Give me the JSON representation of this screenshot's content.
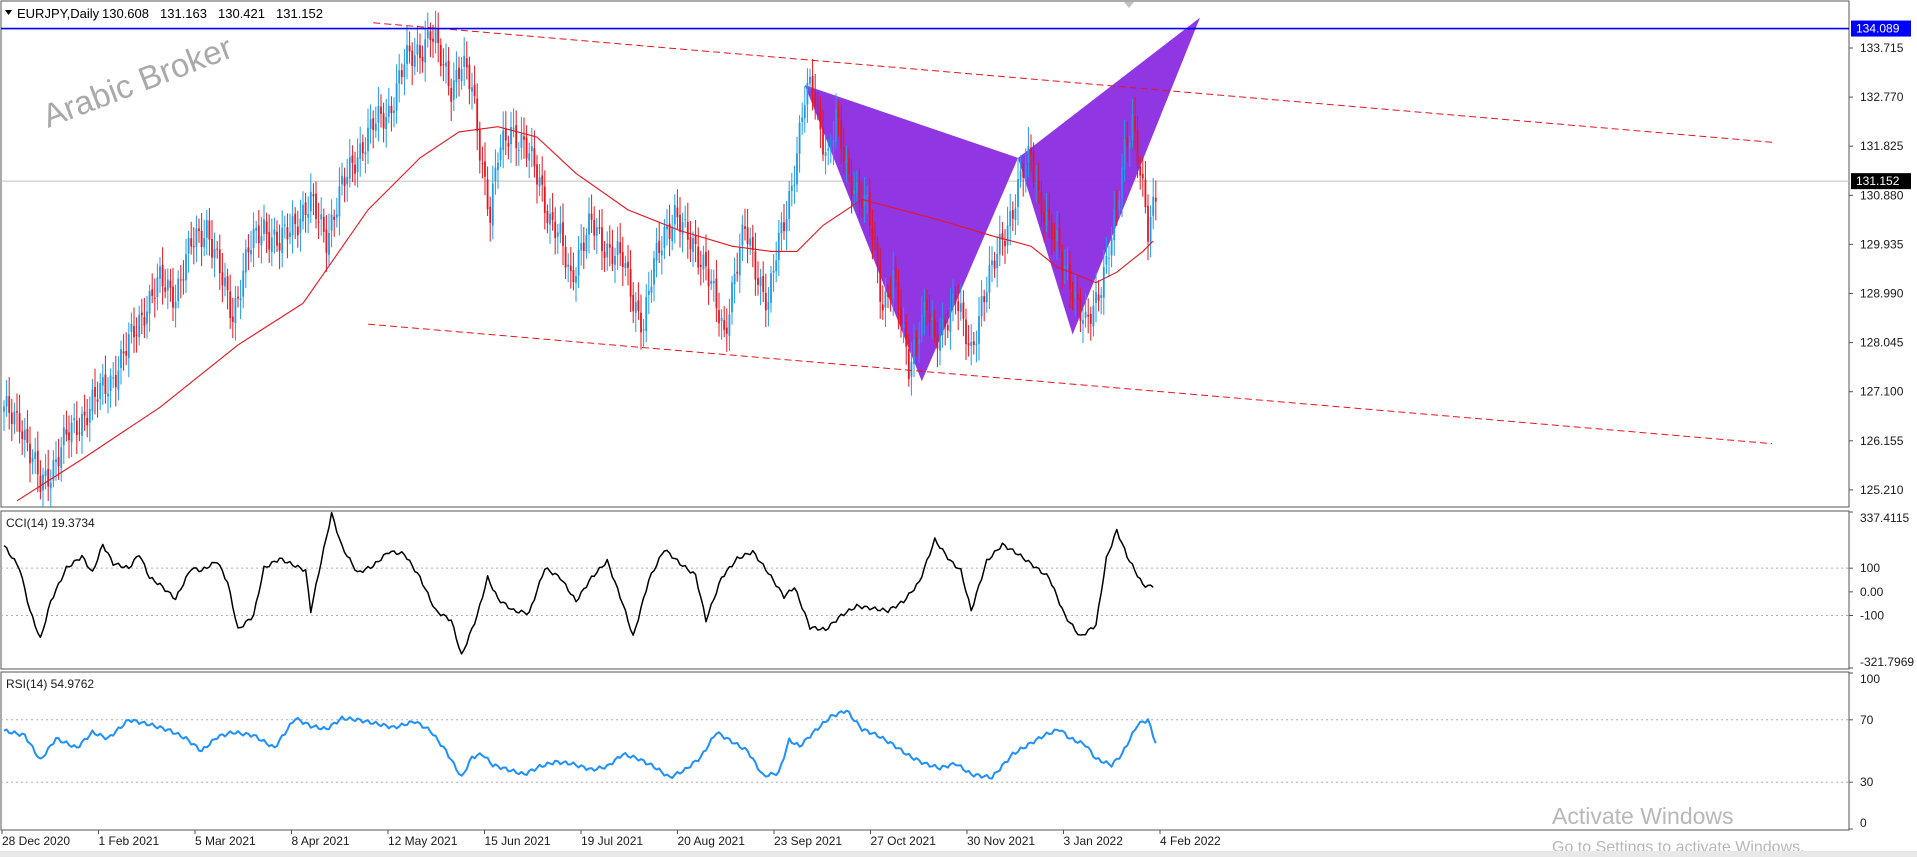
{
  "symbol_label": "EURJPY,Daily",
  "ohlc": [
    "130.608",
    "131.163",
    "130.421",
    "131.152"
  ],
  "watermark": "Arabic Broker",
  "windows_notice": {
    "title": "Activate Windows",
    "subtitle": "Go to Settings to activate Windows."
  },
  "colors": {
    "bull": "#1e9be8",
    "bear": "#e8151f",
    "ma": "#e8151f",
    "channel": "#e8151f",
    "pattern": "#8a2be2",
    "level": "#0000ff",
    "cci": "#000000",
    "rsi": "#1e90ff"
  },
  "chart_data": [
    {
      "type": "candlestick",
      "title": "EURJPY,Daily",
      "ylim": [
        124.9,
        134.6
      ],
      "y_ticks": [
        "133.715",
        "132.770",
        "131.825",
        "130.880",
        "129.935",
        "128.990",
        "128.045",
        "127.100",
        "126.155",
        "125.210"
      ],
      "x_ticks": [
        "28 Dec 2020",
        "1 Feb 2021",
        "5 Mar 2021",
        "8 Apr 2021",
        "12 May 2021",
        "15 Jun 2021",
        "19 Jul 2021",
        "20 Aug 2021",
        "23 Sep 2021",
        "27 Oct 2021",
        "30 Nov 2021",
        "3 Jan 2022",
        "4 Feb 2022"
      ],
      "price_path": [
        [
          0,
          126.7
        ],
        [
          6,
          126.6
        ],
        [
          10,
          125.9
        ],
        [
          14,
          125.3
        ],
        [
          18,
          125.6
        ],
        [
          24,
          126.2
        ],
        [
          30,
          126.6
        ],
        [
          36,
          127.0
        ],
        [
          42,
          127.4
        ],
        [
          48,
          128.0
        ],
        [
          54,
          128.7
        ],
        [
          60,
          129.2
        ],
        [
          66,
          129.0
        ],
        [
          72,
          129.9
        ],
        [
          78,
          130.3
        ],
        [
          84,
          129.2
        ],
        [
          88,
          128.6
        ],
        [
          94,
          129.8
        ],
        [
          100,
          130.3
        ],
        [
          106,
          129.9
        ],
        [
          112,
          130.4
        ],
        [
          118,
          130.7
        ],
        [
          124,
          130.1
        ],
        [
          130,
          131.0
        ],
        [
          136,
          131.7
        ],
        [
          142,
          132.2
        ],
        [
          148,
          132.5
        ],
        [
          154,
          133.4
        ],
        [
          160,
          133.7
        ],
        [
          164,
          134.0
        ],
        [
          168,
          133.5
        ],
        [
          172,
          133.0
        ],
        [
          176,
          133.4
        ],
        [
          180,
          132.9
        ],
        [
          184,
          131.5
        ],
        [
          187,
          130.5
        ],
        [
          190,
          131.6
        ],
        [
          195,
          132.2
        ],
        [
          200,
          131.8
        ],
        [
          206,
          131.2
        ],
        [
          210,
          130.4
        ],
        [
          214,
          130.0
        ],
        [
          218,
          129.3
        ],
        [
          222,
          129.9
        ],
        [
          226,
          130.3
        ],
        [
          230,
          130.0
        ],
        [
          234,
          129.8
        ],
        [
          238,
          129.6
        ],
        [
          242,
          128.9
        ],
        [
          246,
          128.4
        ],
        [
          250,
          129.5
        ],
        [
          254,
          130.2
        ],
        [
          258,
          130.5
        ],
        [
          262,
          130.1
        ],
        [
          266,
          129.9
        ],
        [
          270,
          129.5
        ],
        [
          274,
          128.7
        ],
        [
          277,
          128.2
        ],
        [
          281,
          129.4
        ],
        [
          285,
          130.2
        ],
        [
          289,
          129.5
        ],
        [
          294,
          128.8
        ],
        [
          297,
          129.7
        ],
        [
          301,
          130.6
        ],
        [
          304,
          131.4
        ],
        [
          308,
          132.7
        ],
        [
          311,
          133.0
        ],
        [
          314,
          132.2
        ],
        [
          317,
          131.6
        ],
        [
          320,
          132.3
        ],
        [
          324,
          131.4
        ],
        [
          328,
          131.0
        ],
        [
          332,
          130.6
        ],
        [
          335,
          129.8
        ],
        [
          338,
          128.8
        ],
        [
          342,
          129.3
        ],
        [
          345,
          128.4
        ],
        [
          348,
          127.6
        ],
        [
          352,
          128.4
        ],
        [
          355,
          128.7
        ],
        [
          358,
          128.0
        ],
        [
          362,
          128.5
        ],
        [
          366,
          128.9
        ],
        [
          369,
          128.3
        ],
        [
          372,
          127.9
        ],
        [
          376,
          128.8
        ],
        [
          380,
          129.4
        ],
        [
          384,
          130.1
        ],
        [
          388,
          130.6
        ],
        [
          392,
          131.3
        ],
        [
          395,
          131.7
        ],
        [
          398,
          130.9
        ],
        [
          402,
          130.2
        ],
        [
          406,
          129.8
        ],
        [
          410,
          129.3
        ],
        [
          413,
          128.7
        ],
        [
          416,
          128.3
        ],
        [
          420,
          128.9
        ],
        [
          424,
          129.6
        ],
        [
          428,
          130.5
        ],
        [
          431,
          131.8
        ],
        [
          434,
          132.4
        ],
        [
          437,
          131.3
        ],
        [
          440,
          130.1
        ],
        [
          443,
          130.9
        ]
      ],
      "moving_average_path": [
        [
          5,
          125.0
        ],
        [
          30,
          125.8
        ],
        [
          60,
          126.8
        ],
        [
          90,
          128.0
        ],
        [
          115,
          128.8
        ],
        [
          140,
          130.6
        ],
        [
          160,
          131.6
        ],
        [
          175,
          132.1
        ],
        [
          190,
          132.2
        ],
        [
          205,
          132.0
        ],
        [
          220,
          131.3
        ],
        [
          240,
          130.6
        ],
        [
          260,
          130.2
        ],
        [
          280,
          129.9
        ],
        [
          295,
          129.8
        ],
        [
          305,
          129.8
        ],
        [
          315,
          130.3
        ],
        [
          330,
          130.8
        ],
        [
          345,
          130.6
        ],
        [
          360,
          130.4
        ],
        [
          380,
          130.1
        ],
        [
          395,
          129.9
        ],
        [
          405,
          129.5
        ],
        [
          420,
          129.2
        ],
        [
          428,
          129.4
        ],
        [
          438,
          129.8
        ],
        [
          442,
          130.0
        ]
      ],
      "channel_upper": [
        [
          142,
          134.2
        ],
        [
          680,
          131.9
        ]
      ],
      "channel_lower": [
        [
          140,
          128.4
        ],
        [
          680,
          126.1
        ]
      ],
      "pattern_polygons": [
        [
          [
            308,
            133.0
          ],
          [
            353,
            127.3
          ],
          [
            390,
            131.6
          ]
        ],
        [
          [
            390,
            131.6
          ],
          [
            460,
            134.3
          ],
          [
            411,
            128.2
          ]
        ]
      ],
      "horizontal_levels": [
        {
          "value": 134.089,
          "label": "134.089"
        },
        {
          "value": 131.152,
          "label": "131.152"
        }
      ]
    },
    {
      "type": "line",
      "title": "CCI(14) 19.3734",
      "ylim": [
        -321.7969,
        337.4115
      ],
      "y_ticks": [
        "337.4115",
        "100",
        "0.00",
        "-100",
        "-321.7969"
      ],
      "y_tick_values": [
        337.4115,
        100,
        0,
        -100,
        -321.7969
      ],
      "levels": [
        100,
        -100
      ],
      "x": [
        0,
        6,
        10,
        14,
        18,
        24,
        30,
        34,
        38,
        42,
        48,
        52,
        56,
        60,
        66,
        72,
        76,
        82,
        86,
        90,
        96,
        100,
        106,
        112,
        116,
        118,
        122,
        126,
        130,
        136,
        142,
        148,
        154,
        160,
        166,
        172,
        176,
        182,
        186,
        190,
        196,
        202,
        208,
        214,
        220,
        226,
        232,
        238,
        242,
        248,
        254,
        260,
        266,
        270,
        276,
        282,
        288,
        294,
        300,
        304,
        310,
        316,
        322,
        328,
        334,
        340,
        346,
        352,
        358,
        364,
        368,
        372,
        378,
        384,
        390,
        396,
        402,
        408,
        414,
        420,
        424,
        428,
        432,
        438,
        442
      ],
      "values": [
        195,
        100,
        -80,
        -200,
        -40,
        100,
        150,
        80,
        200,
        120,
        100,
        160,
        60,
        30,
        -30,
        100,
        90,
        130,
        40,
        -160,
        -100,
        100,
        140,
        110,
        90,
        -80,
        130,
        330,
        190,
        80,
        110,
        170,
        160,
        60,
        -80,
        -120,
        -270,
        -100,
        60,
        -30,
        -80,
        -90,
        100,
        60,
        -40,
        60,
        130,
        -50,
        -190,
        50,
        180,
        120,
        70,
        -120,
        60,
        140,
        170,
        80,
        -20,
        20,
        -150,
        -160,
        -100,
        -60,
        -70,
        -80,
        -40,
        40,
        220,
        130,
        90,
        -80,
        130,
        200,
        160,
        110,
        60,
        -100,
        -190,
        -140,
        140,
        260,
        150,
        30,
        19.37
      ]
    },
    {
      "type": "line",
      "title": "RSI(14) 54.9762",
      "ylim": [
        0,
        100
      ],
      "y_ticks": [
        "100",
        "70",
        "30",
        "0"
      ],
      "y_tick_values": [
        100,
        70,
        30,
        0
      ],
      "levels": [
        70,
        30
      ],
      "x": [
        0,
        8,
        14,
        20,
        28,
        34,
        40,
        48,
        56,
        64,
        70,
        76,
        82,
        88,
        96,
        104,
        112,
        118,
        124,
        130,
        136,
        142,
        150,
        158,
        164,
        170,
        176,
        180,
        184,
        188,
        194,
        200,
        206,
        212,
        218,
        226,
        232,
        238,
        244,
        250,
        256,
        262,
        268,
        274,
        280,
        286,
        292,
        298,
        302,
        306,
        312,
        318,
        324,
        330,
        336,
        342,
        348,
        354,
        360,
        366,
        372,
        380,
        388,
        394,
        400,
        406,
        410,
        416,
        420,
        426,
        430,
        436,
        440,
        443
      ],
      "values": [
        63,
        60,
        44,
        58,
        52,
        62,
        58,
        70,
        67,
        63,
        58,
        50,
        59,
        62,
        60,
        52,
        71,
        66,
        64,
        71,
        70,
        68,
        65,
        69,
        63,
        50,
        33,
        46,
        48,
        41,
        38,
        35,
        40,
        43,
        42,
        38,
        40,
        48,
        45,
        40,
        33,
        38,
        46,
        62,
        56,
        50,
        34,
        36,
        57,
        53,
        63,
        72,
        76,
        64,
        60,
        54,
        47,
        42,
        39,
        42,
        35,
        33,
        48,
        54,
        60,
        64,
        58,
        54,
        45,
        41,
        48,
        67,
        70,
        55
      ]
    }
  ]
}
